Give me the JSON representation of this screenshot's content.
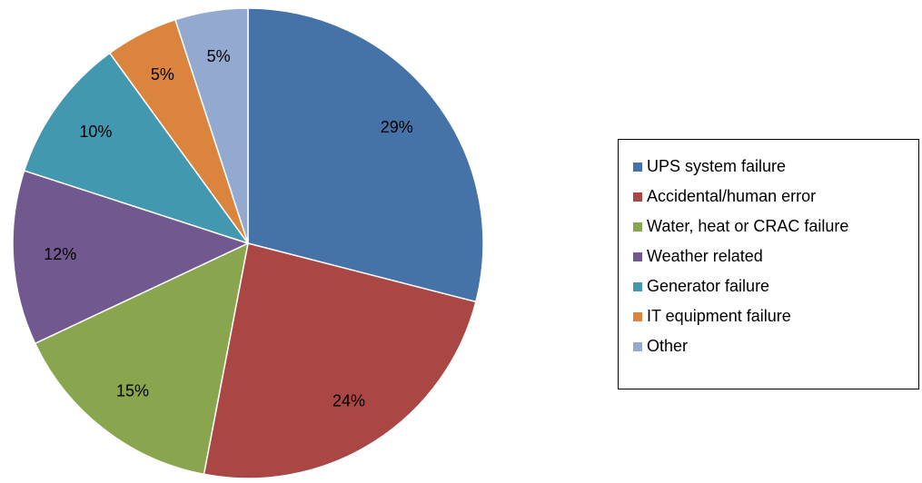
{
  "chart_data": {
    "type": "pie",
    "categories": [
      "UPS system failure",
      "Accidental/human error",
      "Water, heat or CRAC failure",
      "Weather related",
      "Generator failure",
      "IT equipment failure",
      "Other"
    ],
    "values": [
      29,
      24,
      15,
      12,
      10,
      5,
      5
    ],
    "value_labels": [
      "29%",
      "24%",
      "15%",
      "12%",
      "10%",
      "5%",
      "5%"
    ],
    "colors": [
      "#4572a7",
      "#aa4643",
      "#89a54e",
      "#71588f",
      "#4198af",
      "#db843d",
      "#93a9cf"
    ],
    "legend": "right"
  }
}
